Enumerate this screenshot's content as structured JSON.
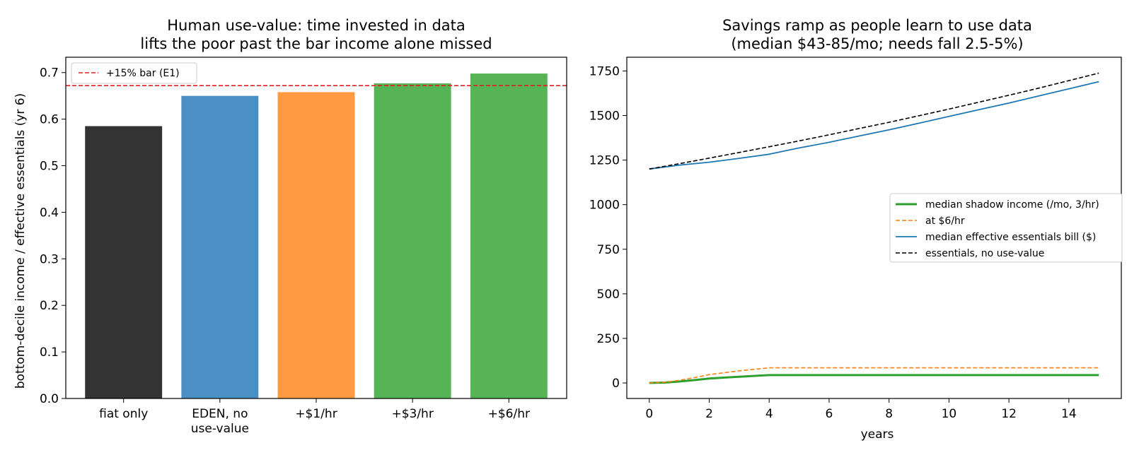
{
  "chart_data": [
    {
      "type": "bar",
      "title_lines": [
        "Human use-value: time invested in data",
        "lifts the poor past the bar income alone missed"
      ],
      "xlabel": "",
      "ylabel": "bottom-decile income / effective essentials (yr 6)",
      "categories": [
        [
          "fiat only"
        ],
        [
          "EDEN, no",
          "use-value"
        ],
        [
          "+$1/hr"
        ],
        [
          "+$3/hr"
        ],
        [
          "+$6/hr"
        ]
      ],
      "values": [
        0.585,
        0.65,
        0.658,
        0.677,
        0.698
      ],
      "colors": [
        "#333333",
        "#4a90c4",
        "#ff9a40",
        "#56b356",
        "#56b356"
      ],
      "ylim": [
        0,
        0.733
      ],
      "yticks": [
        "0.0",
        "0.1",
        "0.2",
        "0.3",
        "0.4",
        "0.5",
        "0.6",
        "0.7"
      ],
      "reference_line": {
        "value": 0.672,
        "label": "+15% bar (E1)",
        "color": "#e02020",
        "style": "dashed"
      },
      "legend_position": "upper-left"
    },
    {
      "type": "line",
      "title_lines": [
        "Savings ramp as people learn to use data",
        "(median $43-85/mo; needs fall 2.5-5%)"
      ],
      "xlabel": "years",
      "ylabel": "",
      "xlim": [
        -0.75,
        15.75
      ],
      "ylim": [
        -87,
        1827
      ],
      "xticks": [
        "0",
        "2",
        "4",
        "6",
        "8",
        "10",
        "12",
        "14"
      ],
      "yticks": [
        "0",
        "250",
        "500",
        "750",
        "1000",
        "1250",
        "1500",
        "1750"
      ],
      "legend_position": "center-right",
      "series": [
        {
          "name": "median shadow income (/mo, 3/hr)",
          "color": "#2ca02c",
          "style": "solid",
          "width": 3,
          "x": [
            0,
            0.5,
            1,
            1.5,
            2,
            3,
            4,
            5,
            6,
            8,
            10,
            12,
            14,
            15
          ],
          "y": [
            0,
            2,
            8,
            16,
            25,
            35,
            44,
            44,
            44,
            44,
            44,
            44,
            44,
            44
          ]
        },
        {
          "name": "at $6/hr",
          "color": "#ff7f0e",
          "style": "dashed",
          "width": 1.6,
          "x": [
            0,
            0.5,
            1,
            1.5,
            2,
            3,
            4,
            5,
            6,
            8,
            10,
            12,
            14,
            15
          ],
          "y": [
            0,
            4,
            15,
            30,
            47,
            68,
            85,
            85,
            85,
            85,
            85,
            85,
            85,
            85
          ]
        },
        {
          "name": "median effective essentials bill ($)",
          "color": "#1f77b4",
          "style": "solid",
          "width": 1.8,
          "x": [
            0,
            1,
            2,
            3,
            4,
            5,
            6,
            7,
            8,
            9,
            10,
            11,
            12,
            13,
            14,
            15
          ],
          "y": [
            1200,
            1222,
            1238,
            1260,
            1283,
            1318,
            1350,
            1385,
            1420,
            1457,
            1495,
            1533,
            1570,
            1610,
            1650,
            1690
          ]
        },
        {
          "name": "essentials, no use-value",
          "color": "#000000",
          "style": "dashed",
          "width": 1.6,
          "x": [
            0,
            1,
            2,
            3,
            4,
            5,
            6,
            7,
            8,
            9,
            10,
            11,
            12,
            13,
            14,
            15
          ],
          "y": [
            1200,
            1230,
            1261,
            1293,
            1325,
            1358,
            1392,
            1427,
            1462,
            1499,
            1536,
            1575,
            1614,
            1654,
            1696,
            1738
          ]
        }
      ]
    }
  ]
}
